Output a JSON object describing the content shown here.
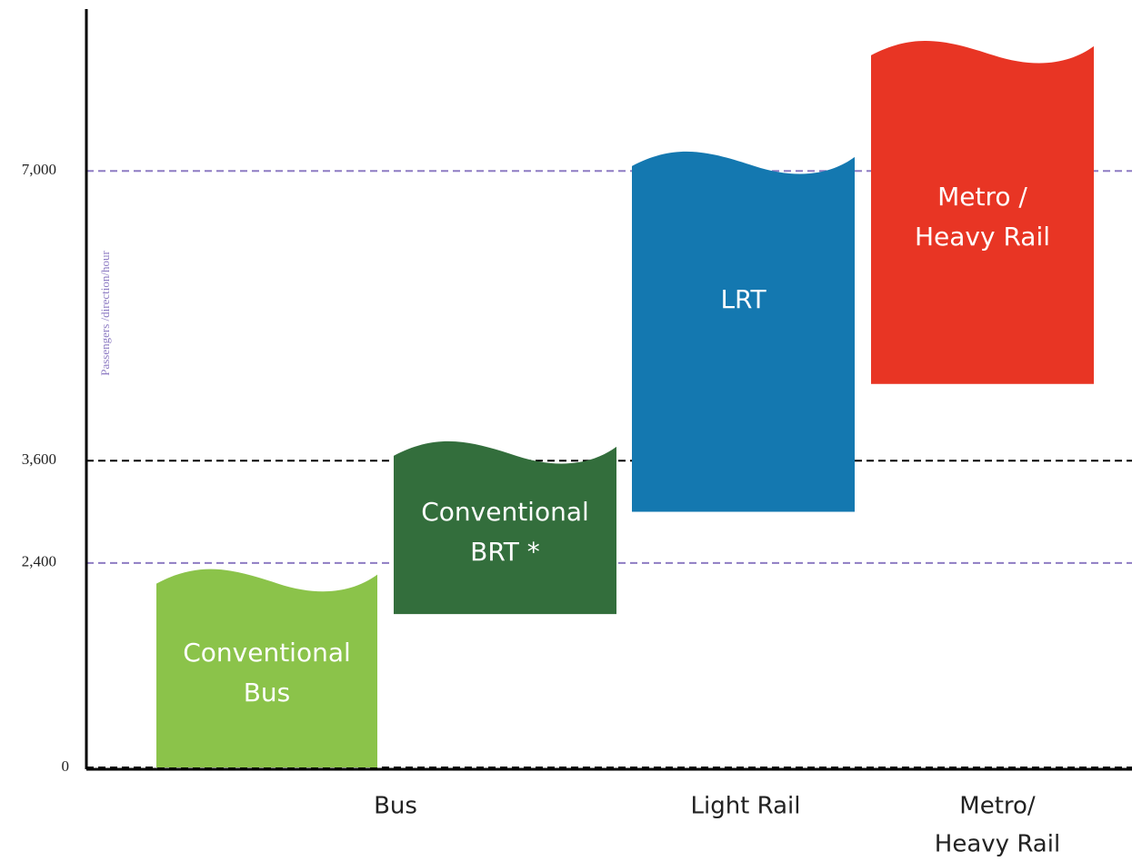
{
  "chart_data": {
    "type": "floating-range",
    "y_label": "Passengers /direction/hour",
    "ylim": [
      0,
      8900
    ],
    "yticks": [
      0,
      {
        "value": 2400,
        "label": "2,400"
      },
      {
        "value": 3600,
        "label": "3,600"
      },
      {
        "value": 7000,
        "label": "7,000"
      }
    ],
    "grid": true,
    "grid_colors": [
      "#000000",
      "#8e7cc3",
      "#000000",
      "#8e7cc3"
    ],
    "bars": [
      {
        "label": [
          "Conventional",
          "Bus"
        ],
        "low": 0,
        "high": 2200,
        "color": "#8bc34a"
      },
      {
        "label": [
          "Conventional",
          "BRT *"
        ],
        "low": 1800,
        "high": 3700,
        "color": "#336e3c"
      },
      {
        "label": [
          "LRT"
        ],
        "low": 3000,
        "high": 7100,
        "color": "#1478b0"
      },
      {
        "label": [
          "Metro /",
          "Heavy Rail"
        ],
        "low": 4500,
        "high": 8400,
        "color": "#e83524"
      }
    ],
    "groups": [
      {
        "label": [
          "Bus"
        ]
      },
      {
        "label": [
          "Light Rail"
        ]
      },
      {
        "label": [
          "Metro/",
          "Heavy Rail"
        ]
      }
    ]
  }
}
